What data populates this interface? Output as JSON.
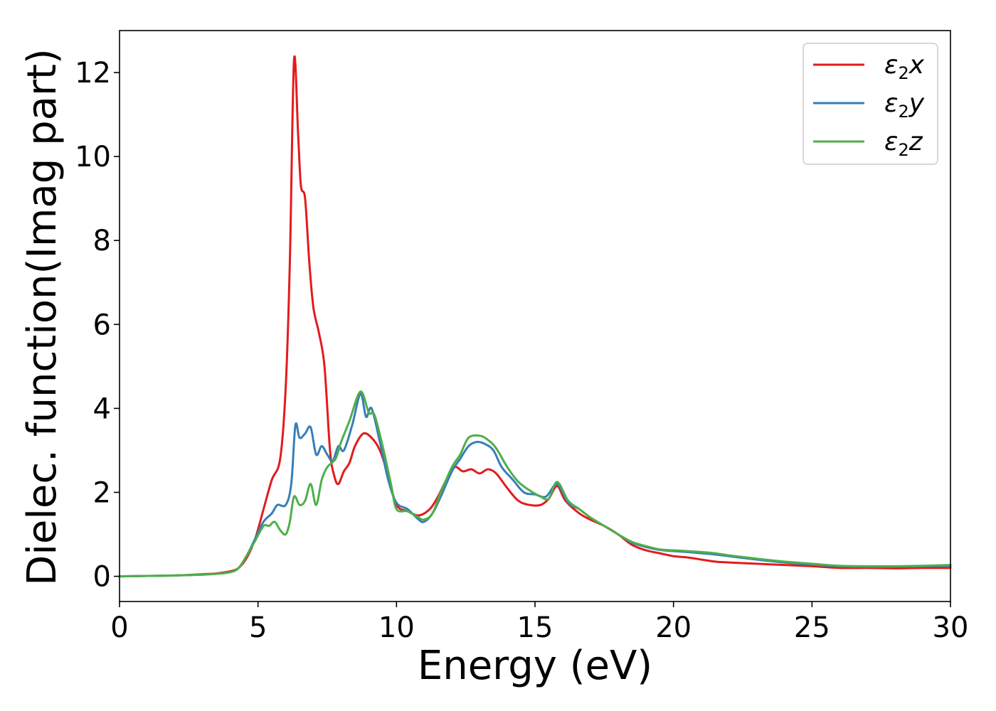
{
  "chart_data": {
    "type": "line",
    "title": "",
    "xlabel": "Energy (eV)",
    "ylabel": "Dielec. function(Imag part)",
    "xlim": [
      0,
      30
    ],
    "ylim": [
      -0.6,
      13.0
    ],
    "xticks": [
      0,
      5,
      10,
      15,
      20,
      25,
      30
    ],
    "yticks": [
      0,
      2,
      4,
      6,
      8,
      10,
      12
    ],
    "grid": false,
    "legend_position": "top-right",
    "series": [
      {
        "name": "ε2x",
        "legend_base": "ε",
        "legend_sub": "2",
        "legend_tail": "x",
        "color": "#e41a1c",
        "points": [
          [
            0,
            0.0
          ],
          [
            1,
            0.01
          ],
          [
            2,
            0.02
          ],
          [
            3,
            0.05
          ],
          [
            3.5,
            0.07
          ],
          [
            4,
            0.12
          ],
          [
            4.3,
            0.2
          ],
          [
            4.6,
            0.45
          ],
          [
            4.9,
            0.9
          ],
          [
            5.2,
            1.6
          ],
          [
            5.5,
            2.3
          ],
          [
            5.8,
            2.8
          ],
          [
            6.0,
            4.5
          ],
          [
            6.15,
            7.5
          ],
          [
            6.3,
            12.3
          ],
          [
            6.45,
            10.5
          ],
          [
            6.55,
            9.3
          ],
          [
            6.7,
            9.0
          ],
          [
            6.85,
            7.5
          ],
          [
            7.0,
            6.4
          ],
          [
            7.2,
            5.8
          ],
          [
            7.4,
            5.0
          ],
          [
            7.6,
            3.0
          ],
          [
            7.75,
            2.4
          ],
          [
            7.9,
            2.2
          ],
          [
            8.1,
            2.5
          ],
          [
            8.3,
            2.7
          ],
          [
            8.5,
            3.1
          ],
          [
            8.8,
            3.4
          ],
          [
            9.1,
            3.3
          ],
          [
            9.4,
            3.0
          ],
          [
            9.7,
            2.4
          ],
          [
            10.0,
            1.7
          ],
          [
            10.4,
            1.55
          ],
          [
            10.8,
            1.45
          ],
          [
            11.2,
            1.6
          ],
          [
            11.5,
            1.9
          ],
          [
            11.8,
            2.3
          ],
          [
            12.1,
            2.6
          ],
          [
            12.4,
            2.5
          ],
          [
            12.7,
            2.55
          ],
          [
            13.0,
            2.45
          ],
          [
            13.3,
            2.55
          ],
          [
            13.6,
            2.45
          ],
          [
            14.0,
            2.1
          ],
          [
            14.4,
            1.8
          ],
          [
            14.8,
            1.7
          ],
          [
            15.2,
            1.7
          ],
          [
            15.5,
            1.85
          ],
          [
            15.8,
            2.15
          ],
          [
            16.1,
            1.8
          ],
          [
            16.6,
            1.5
          ],
          [
            17.0,
            1.35
          ],
          [
            17.5,
            1.2
          ],
          [
            18.0,
            1.0
          ],
          [
            18.5,
            0.75
          ],
          [
            19.0,
            0.62
          ],
          [
            19.5,
            0.55
          ],
          [
            20.0,
            0.48
          ],
          [
            20.5,
            0.45
          ],
          [
            21.0,
            0.4
          ],
          [
            21.5,
            0.35
          ],
          [
            22.0,
            0.33
          ],
          [
            23.0,
            0.3
          ],
          [
            24.0,
            0.27
          ],
          [
            25.0,
            0.24
          ],
          [
            26.0,
            0.2
          ],
          [
            27.0,
            0.2
          ],
          [
            28.0,
            0.19
          ],
          [
            29.0,
            0.2
          ],
          [
            30.0,
            0.2
          ]
        ]
      },
      {
        "name": "ε2y",
        "legend_base": "ε",
        "legend_sub": "2",
        "legend_tail": "y",
        "color": "#377eb8",
        "points": [
          [
            0,
            0.0
          ],
          [
            1,
            0.01
          ],
          [
            2,
            0.02
          ],
          [
            3,
            0.04
          ],
          [
            3.5,
            0.06
          ],
          [
            4,
            0.1
          ],
          [
            4.3,
            0.2
          ],
          [
            4.6,
            0.5
          ],
          [
            4.9,
            0.9
          ],
          [
            5.2,
            1.3
          ],
          [
            5.5,
            1.5
          ],
          [
            5.7,
            1.7
          ],
          [
            6.0,
            1.7
          ],
          [
            6.2,
            2.2
          ],
          [
            6.35,
            3.6
          ],
          [
            6.5,
            3.3
          ],
          [
            6.7,
            3.4
          ],
          [
            6.9,
            3.55
          ],
          [
            7.1,
            2.9
          ],
          [
            7.3,
            3.1
          ],
          [
            7.5,
            2.9
          ],
          [
            7.7,
            2.75
          ],
          [
            7.9,
            3.1
          ],
          [
            8.1,
            3.0
          ],
          [
            8.4,
            3.6
          ],
          [
            8.7,
            4.35
          ],
          [
            8.9,
            3.8
          ],
          [
            9.1,
            4.0
          ],
          [
            9.4,
            3.2
          ],
          [
            9.7,
            2.3
          ],
          [
            10.0,
            1.75
          ],
          [
            10.4,
            1.6
          ],
          [
            10.8,
            1.35
          ],
          [
            11.0,
            1.3
          ],
          [
            11.3,
            1.5
          ],
          [
            11.6,
            1.9
          ],
          [
            12.0,
            2.5
          ],
          [
            12.3,
            2.8
          ],
          [
            12.6,
            3.1
          ],
          [
            12.9,
            3.2
          ],
          [
            13.2,
            3.15
          ],
          [
            13.5,
            3.0
          ],
          [
            13.8,
            2.6
          ],
          [
            14.2,
            2.3
          ],
          [
            14.6,
            2.0
          ],
          [
            15.0,
            1.95
          ],
          [
            15.4,
            1.9
          ],
          [
            15.8,
            2.2
          ],
          [
            16.2,
            1.75
          ],
          [
            16.6,
            1.6
          ],
          [
            17.0,
            1.4
          ],
          [
            17.5,
            1.2
          ],
          [
            18.0,
            1.0
          ],
          [
            18.5,
            0.8
          ],
          [
            19.0,
            0.7
          ],
          [
            19.5,
            0.63
          ],
          [
            20.0,
            0.6
          ],
          [
            20.5,
            0.58
          ],
          [
            21.0,
            0.55
          ],
          [
            21.5,
            0.52
          ],
          [
            22.0,
            0.48
          ],
          [
            23.0,
            0.4
          ],
          [
            24.0,
            0.33
          ],
          [
            25.0,
            0.28
          ],
          [
            26.0,
            0.24
          ],
          [
            27.0,
            0.23
          ],
          [
            28.0,
            0.23
          ],
          [
            29.0,
            0.24
          ],
          [
            30.0,
            0.25
          ]
        ]
      },
      {
        "name": "ε2z",
        "legend_base": "ε",
        "legend_sub": "2",
        "legend_tail": "z",
        "color": "#4daf4a",
        "points": [
          [
            0,
            0.0
          ],
          [
            1,
            0.01
          ],
          [
            2,
            0.02
          ],
          [
            3,
            0.04
          ],
          [
            3.5,
            0.06
          ],
          [
            4,
            0.1
          ],
          [
            4.3,
            0.2
          ],
          [
            4.6,
            0.5
          ],
          [
            4.9,
            0.85
          ],
          [
            5.2,
            1.2
          ],
          [
            5.4,
            1.2
          ],
          [
            5.6,
            1.3
          ],
          [
            5.8,
            1.1
          ],
          [
            6.0,
            1.0
          ],
          [
            6.15,
            1.3
          ],
          [
            6.3,
            1.9
          ],
          [
            6.5,
            1.7
          ],
          [
            6.7,
            1.8
          ],
          [
            6.9,
            2.2
          ],
          [
            7.1,
            1.7
          ],
          [
            7.3,
            2.3
          ],
          [
            7.5,
            2.6
          ],
          [
            7.8,
            2.8
          ],
          [
            8.0,
            3.2
          ],
          [
            8.3,
            3.7
          ],
          [
            8.7,
            4.4
          ],
          [
            9.0,
            3.9
          ],
          [
            9.2,
            3.85
          ],
          [
            9.5,
            3.1
          ],
          [
            9.8,
            2.2
          ],
          [
            10.0,
            1.6
          ],
          [
            10.4,
            1.55
          ],
          [
            10.8,
            1.4
          ],
          [
            11.0,
            1.35
          ],
          [
            11.3,
            1.5
          ],
          [
            11.6,
            2.0
          ],
          [
            12.0,
            2.6
          ],
          [
            12.3,
            2.9
          ],
          [
            12.6,
            3.3
          ],
          [
            13.0,
            3.35
          ],
          [
            13.3,
            3.25
          ],
          [
            13.6,
            3.05
          ],
          [
            14.0,
            2.6
          ],
          [
            14.4,
            2.25
          ],
          [
            14.8,
            2.05
          ],
          [
            15.2,
            1.9
          ],
          [
            15.5,
            1.85
          ],
          [
            15.8,
            2.25
          ],
          [
            16.2,
            1.8
          ],
          [
            16.6,
            1.6
          ],
          [
            17.0,
            1.4
          ],
          [
            17.5,
            1.2
          ],
          [
            18.0,
            1.0
          ],
          [
            18.5,
            0.82
          ],
          [
            19.0,
            0.72
          ],
          [
            19.5,
            0.64
          ],
          [
            20.0,
            0.62
          ],
          [
            20.5,
            0.6
          ],
          [
            21.0,
            0.58
          ],
          [
            21.5,
            0.55
          ],
          [
            22.0,
            0.5
          ],
          [
            23.0,
            0.42
          ],
          [
            24.0,
            0.35
          ],
          [
            25.0,
            0.3
          ],
          [
            26.0,
            0.25
          ],
          [
            27.0,
            0.24
          ],
          [
            28.0,
            0.24
          ],
          [
            29.0,
            0.25
          ],
          [
            30.0,
            0.27
          ]
        ]
      }
    ]
  }
}
